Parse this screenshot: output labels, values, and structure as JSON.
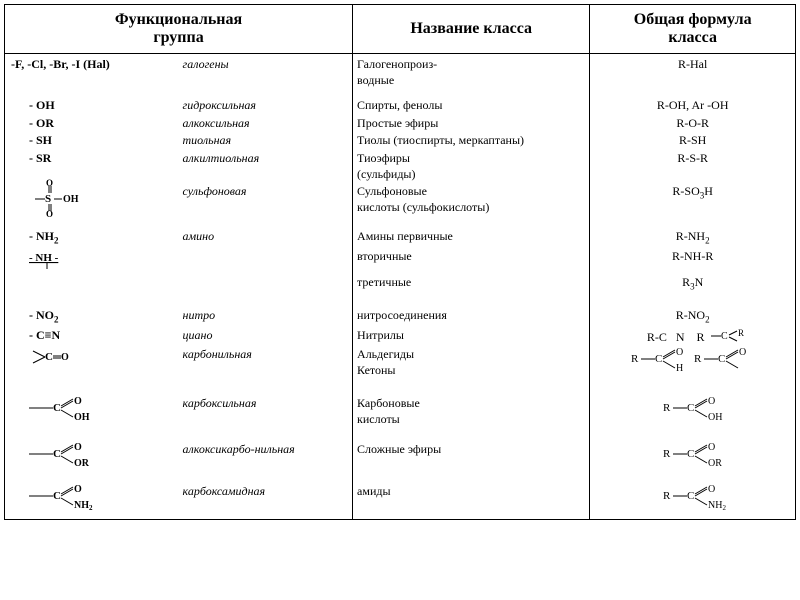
{
  "headers": {
    "group": "Функциональная\nгруппа",
    "class": "Название класса",
    "formula": "Общая формула\nкласса"
  },
  "rows": [
    {
      "sym": "-F, -Cl, -Br, -I   (Hal)",
      "sym_style": "bold noindent",
      "name": "галогены",
      "cls": "Галогенопроиз-\nводные",
      "fml": "R-Hal"
    },
    {
      "sym": "- OH",
      "name": "гидроксильная",
      "cls": "Спирты, фенолы",
      "fml": "R-OH,   Ar -OH",
      "spacer": 6
    },
    {
      "sym": "- OR",
      "name": "алкоксильная",
      "cls": "Простые эфиры",
      "fml": "R-O-R"
    },
    {
      "sym": "- SH",
      "name": "тиольная",
      "cls": "Тиолы (тиоспирты, меркаптаны)",
      "fml": "R-SH"
    },
    {
      "sym": "- SR",
      "name": "алкилтиольная",
      "cls": "Тиоэфиры\n(сульфиды)",
      "fml": "R-S-R"
    },
    {
      "sym": "[sulfo]",
      "name": "сульфоновая",
      "cls": "Сульфоновые\nкислоты (сульфокислоты)",
      "fml": "R-SO<sub>3</sub>H"
    },
    {
      "sym": "- NH<sub>2</sub>",
      "name": "амино",
      "cls": "Амины первичные",
      "fml": "R-NH<sub>2</sub>",
      "spacer": 6
    },
    {
      "sym": "[nh-sec]",
      "name": "",
      "cls": "вторичные",
      "fml": "R-NH-R"
    },
    {
      "sym": "",
      "name": "",
      "cls": "третичные",
      "fml": "R<sub>3</sub>N"
    },
    {
      "sym": "- NO<sub>2</sub>",
      "name": "нитро",
      "cls": "нитросоединения",
      "fml": "R-NO<sub>2</sub>",
      "spacer": 10
    },
    {
      "sym": "- C≡N",
      "name": "циано",
      "cls": "Нитрилы",
      "fml": "[nitrile]"
    },
    {
      "sym": "[c=o]",
      "name": "карбонильная",
      "cls": "Альдегиды\nКетоны",
      "fml": "[ald-ket]"
    },
    {
      "sym": "[cooh]",
      "name": "карбоксильная",
      "cls": "Карбоновые\nкислоты",
      "fml": "[carboxyl]",
      "spacer": 14
    },
    {
      "sym": "[coor]",
      "name": "алкоксикарбо-нильная",
      "cls": "Сложные эфиры",
      "fml": "[ester]",
      "spacer": 10
    },
    {
      "sym": "[conh2]",
      "name": "карбоксамидная",
      "cls": "амиды",
      "fml": "[amide]",
      "spacer": 10,
      "padbottom": 6
    }
  ],
  "style": {
    "header_fontsize": 16,
    "body_fontsize": 12,
    "italic_col": 2,
    "border_color": "#000000",
    "background": "#ffffff"
  }
}
